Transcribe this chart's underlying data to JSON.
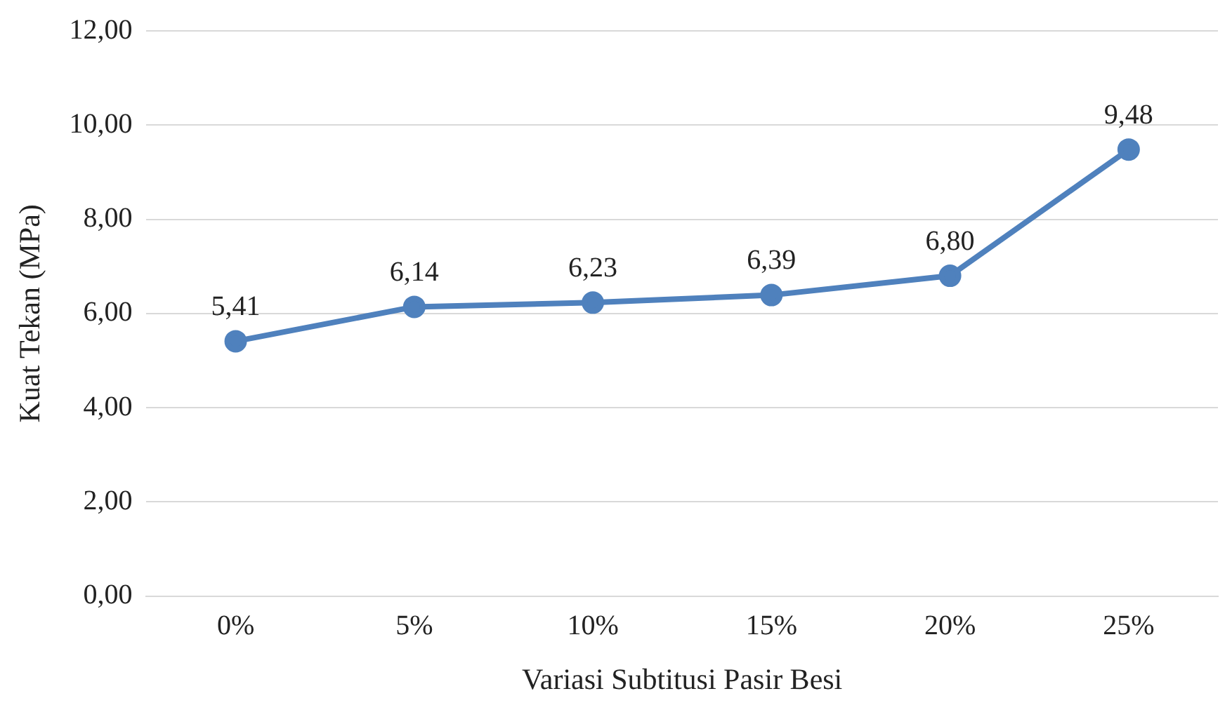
{
  "chart_data": {
    "type": "line",
    "xlabel": "Variasi Subtitusi Pasir Besi",
    "ylabel": "Kuat Tekan (MPa)",
    "categories": [
      "0%",
      "5%",
      "10%",
      "15%",
      "20%",
      "25%"
    ],
    "series": [
      {
        "color": "#4f81bd",
        "values": [
          5.41,
          6.14,
          6.23,
          6.39,
          6.8,
          9.48
        ],
        "value_labels": [
          "5,41",
          "6,14",
          "6,23",
          "6,39",
          "6,80",
          "9,48"
        ]
      }
    ],
    "ylim": [
      0,
      12
    ],
    "yticks": [
      {
        "value": 0,
        "label": "0,00"
      },
      {
        "value": 2,
        "label": "2,00"
      },
      {
        "value": 4,
        "label": "4,00"
      },
      {
        "value": 6,
        "label": "6,00"
      },
      {
        "value": 8,
        "label": "8,00"
      },
      {
        "value": 10,
        "label": "10,00"
      },
      {
        "value": 12,
        "label": "12,00"
      }
    ],
    "grid": "y",
    "legend": false,
    "marker": "circle",
    "line_style": "solid"
  }
}
